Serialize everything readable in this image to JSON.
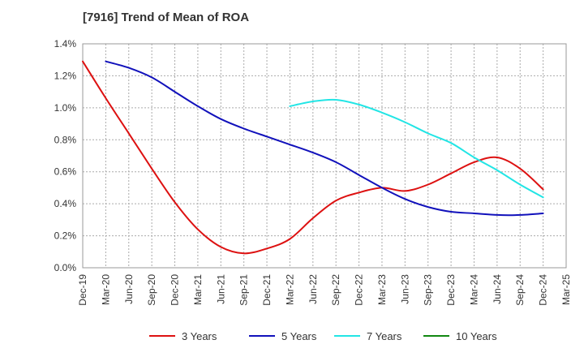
{
  "chart_data": {
    "type": "line",
    "title": "[7916]  Trend of Mean of ROA",
    "xlabel": "",
    "ylabel": "",
    "ylim": [
      0,
      1.4
    ],
    "ytick_values": [
      0,
      0.2,
      0.4,
      0.6,
      0.8,
      1.0,
      1.2,
      1.4
    ],
    "ytick_labels": [
      "0.0%",
      "0.2%",
      "0.4%",
      "0.6%",
      "0.8%",
      "1.0%",
      "1.2%",
      "1.4%"
    ],
    "categories": [
      "Dec-19",
      "Mar-20",
      "Jun-20",
      "Sep-20",
      "Dec-20",
      "Mar-21",
      "Jun-21",
      "Sep-21",
      "Dec-21",
      "Mar-22",
      "Jun-22",
      "Sep-22",
      "Dec-22",
      "Mar-23",
      "Jun-23",
      "Sep-23",
      "Dec-23",
      "Mar-24",
      "Jun-24",
      "Sep-24",
      "Dec-24",
      "Mar-25"
    ],
    "grid": true,
    "legend_position": "bottom",
    "series": [
      {
        "name": "3 Years",
        "color": "#dd1111",
        "values": [
          1.29,
          1.06,
          0.84,
          0.62,
          0.41,
          0.24,
          0.13,
          0.09,
          0.12,
          0.18,
          0.31,
          0.42,
          0.47,
          0.5,
          0.48,
          0.52,
          0.59,
          0.66,
          0.69,
          0.62,
          0.49,
          null
        ]
      },
      {
        "name": "5 Years",
        "color": "#1111bb",
        "values": [
          null,
          1.29,
          1.25,
          1.19,
          1.1,
          1.01,
          0.93,
          0.87,
          0.82,
          0.77,
          0.72,
          0.66,
          0.58,
          0.5,
          0.43,
          0.38,
          0.35,
          0.34,
          0.33,
          0.33,
          0.34,
          null
        ]
      },
      {
        "name": "7 Years",
        "color": "#22e5e5",
        "values": [
          null,
          null,
          null,
          null,
          null,
          null,
          null,
          null,
          null,
          1.01,
          1.04,
          1.05,
          1.02,
          0.97,
          0.91,
          0.84,
          0.78,
          0.69,
          0.61,
          0.52,
          0.44,
          null
        ]
      },
      {
        "name": "10 Years",
        "color": "#118811",
        "values": [
          null,
          null,
          null,
          null,
          null,
          null,
          null,
          null,
          null,
          null,
          null,
          null,
          null,
          null,
          null,
          null,
          null,
          null,
          null,
          null,
          null,
          null
        ]
      }
    ]
  }
}
